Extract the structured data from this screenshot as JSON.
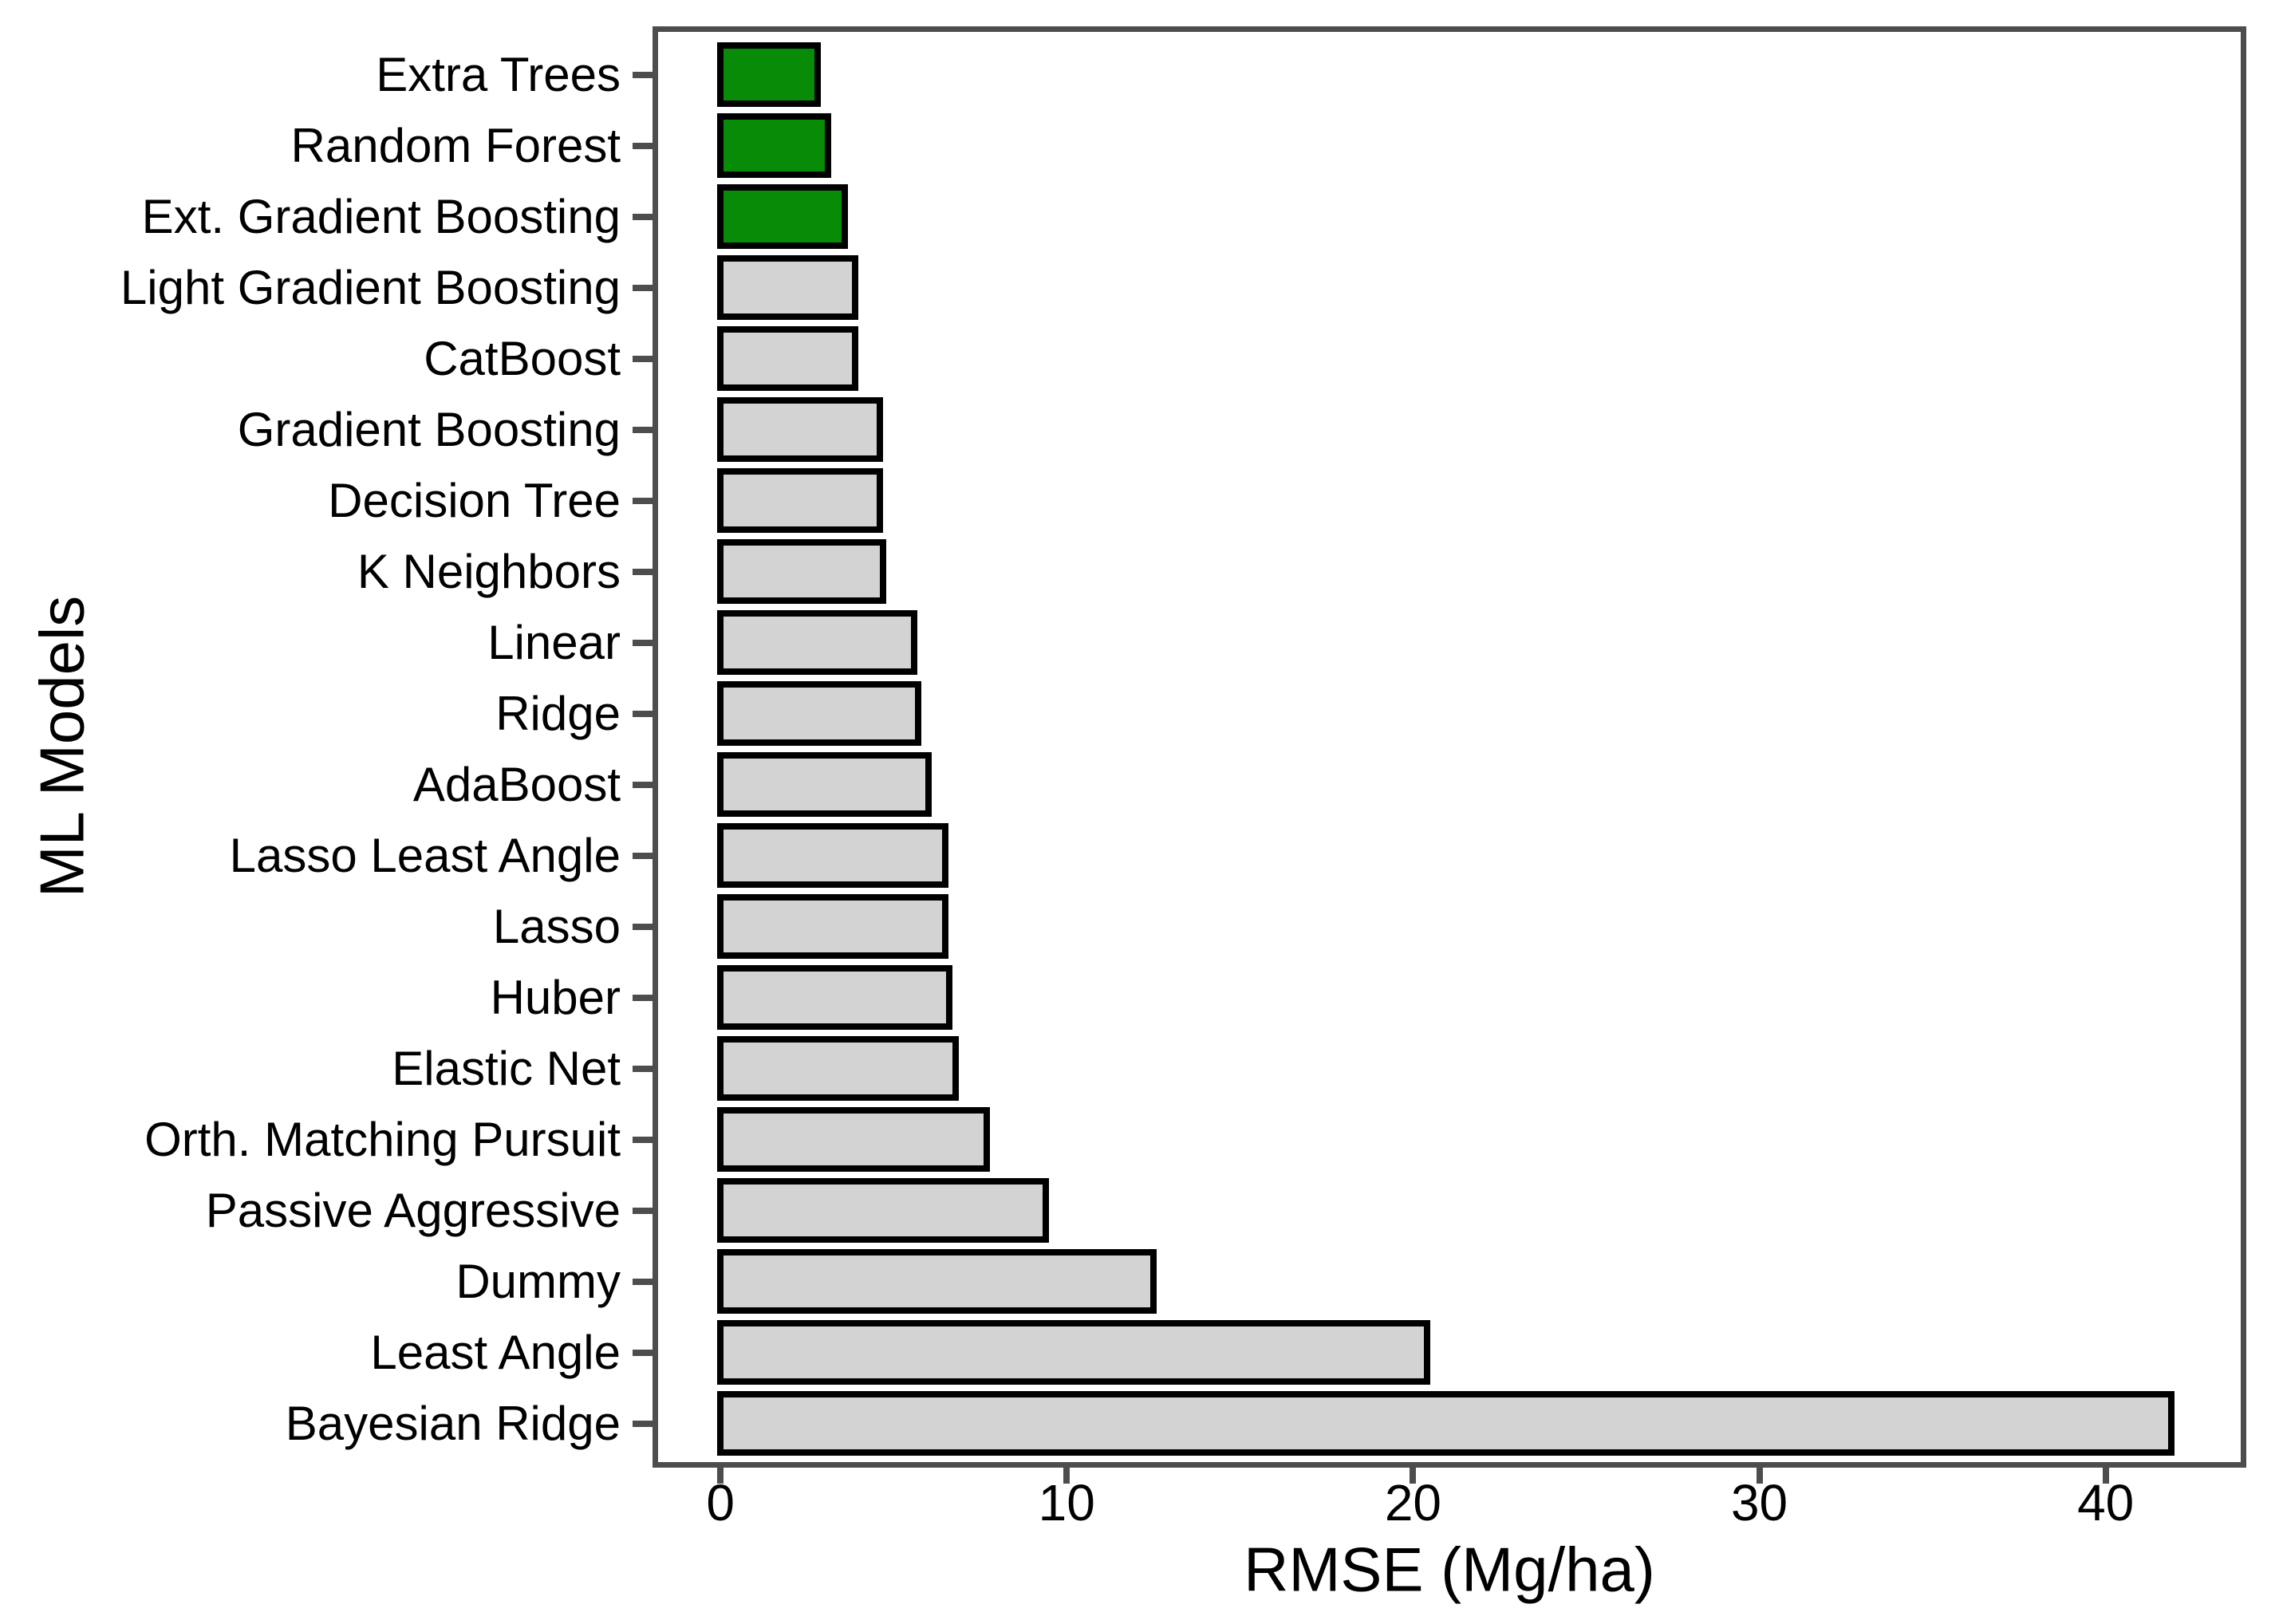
{
  "chart_data": {
    "type": "bar",
    "orientation": "horizontal",
    "title": "",
    "xlabel": "RMSE (Mg/ha)",
    "ylabel": "ML Models",
    "categories": [
      "Extra Trees",
      "Random Forest",
      "Ext. Gradient Boosting",
      "Light Gradient Boosting",
      "CatBoost",
      "Gradient Boosting",
      "Decision Tree",
      "K Neighbors",
      "Linear",
      "Ridge",
      "AdaBoost",
      "Lasso Least Angle",
      "Lasso",
      "Huber",
      "Elastic Net",
      "Orth. Matching Pursuit",
      "Passive Aggressive",
      "Dummy",
      "Least Angle",
      "Bayesian Ridge"
    ],
    "values": [
      2.8,
      3.1,
      3.6,
      3.9,
      3.9,
      4.6,
      4.6,
      4.7,
      5.6,
      5.7,
      6.0,
      6.5,
      6.5,
      6.6,
      6.8,
      7.7,
      9.4,
      12.5,
      20.4,
      41.9
    ],
    "highlighted_categories": [
      "Extra Trees",
      "Random Forest",
      "Ext. Gradient Boosting"
    ],
    "highlight_color": "#088c08",
    "bar_color": "#d3d3d3",
    "bar_border_color": "#000000",
    "axis_color": "#4d4d4d",
    "text_color": "#000000",
    "background_color": "#ffffff",
    "x_ticks": [
      0,
      10,
      20,
      30,
      40
    ],
    "xlim": [
      -1.8,
      43.9
    ],
    "grid": false,
    "legend": false
  }
}
